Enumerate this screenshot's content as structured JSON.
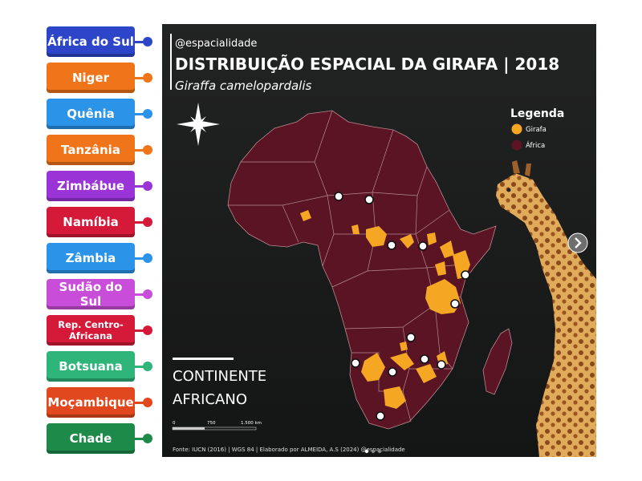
{
  "labels": [
    {
      "text": "África do Sul",
      "color": "#2d46c9"
    },
    {
      "text": "Niger",
      "color": "#f07419"
    },
    {
      "text": "Quênia",
      "color": "#2b93e8"
    },
    {
      "text": "Tanzânia",
      "color": "#f07419"
    },
    {
      "text": "Zimbábue",
      "color": "#9b34d6"
    },
    {
      "text": "Namíbia",
      "color": "#d41a38"
    },
    {
      "text": "Zâmbia",
      "color": "#2b93e8"
    },
    {
      "text": "Sudão do Sul",
      "color": "#c84ed9"
    },
    {
      "text": "Rep. Centro-Africana",
      "color": "#d41a38"
    },
    {
      "text": "Botsuana",
      "color": "#2fb57a"
    },
    {
      "text": "Moçambique",
      "color": "#e2481d"
    },
    {
      "text": "Chade",
      "color": "#1e8a4a"
    }
  ],
  "map": {
    "handle": "@espacialidade",
    "title": "DISTRIBUIÇÃO ESPACIAL DA GIRAFA | 2018",
    "subtitle": "Giraffa camelopardalis",
    "legend_title": "Legenda",
    "legend_items": [
      {
        "label": "Girafa",
        "color": "#f5a623"
      },
      {
        "label": "África",
        "color": "#5a1424"
      }
    ],
    "continent_line1": "CONTINENTE",
    "continent_line2": "AFRICANO",
    "scale_labels": [
      "0",
      "750",
      "1.500 km"
    ],
    "source": "Fonte: IUCN (2016) | WGS 84 | Elaborado por ALMEIDA, A.S (2024) @espacialidade",
    "compass_icon": "compass-star-icon",
    "next_icon": "chevron-right-icon"
  },
  "colors": {
    "africa": "#5a1424",
    "giraffe_range": "#f5a623",
    "map_bg": "#1b1c1c"
  }
}
